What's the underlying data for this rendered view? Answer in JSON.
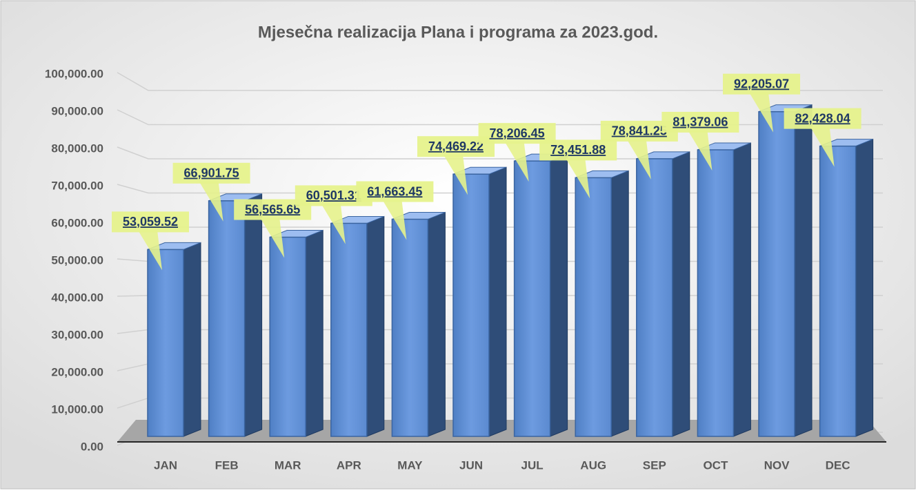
{
  "chart_data": {
    "type": "bar3d",
    "title": "Mjesečna realizacija Plana i programa za 2023.god.",
    "categories": [
      "JAN",
      "FEB",
      "MAR",
      "APR",
      "MAY",
      "JUN",
      "JUL",
      "AUG",
      "SEP",
      "OCT",
      "NOV",
      "DEC"
    ],
    "values": [
      53059.52,
      66901.75,
      56565.65,
      60501.31,
      61663.45,
      74469.22,
      78206.45,
      73451.88,
      78841.25,
      81379.06,
      92205.07,
      82428.04
    ],
    "value_labels": [
      "53,059.52",
      "66,901.75",
      "56,565.65",
      "60,501.31",
      "61,663.45",
      "74,469.22",
      "78,206.45",
      "73,451.88",
      "78,841.25",
      "81,379.06",
      "92,205.07",
      "82,428.04"
    ],
    "color": "#5b8fd6",
    "ylim": [
      0,
      100000
    ],
    "yticks": [
      {
        "value": 0,
        "label": "0.00"
      },
      {
        "value": 10000,
        "label": "10,000.00"
      },
      {
        "value": 20000,
        "label": "20,000.00"
      },
      {
        "value": 30000,
        "label": "30,000.00"
      },
      {
        "value": 40000,
        "label": "40,000.00"
      },
      {
        "value": 50000,
        "label": "50,000.00"
      },
      {
        "value": 60000,
        "label": "60,000.00"
      },
      {
        "value": 70000,
        "label": "70,000.00"
      },
      {
        "value": 80000,
        "label": "80,000.00"
      },
      {
        "value": 90000,
        "label": "90,000.00"
      },
      {
        "value": 100000,
        "label": "100,000.00"
      }
    ],
    "grid": true
  }
}
